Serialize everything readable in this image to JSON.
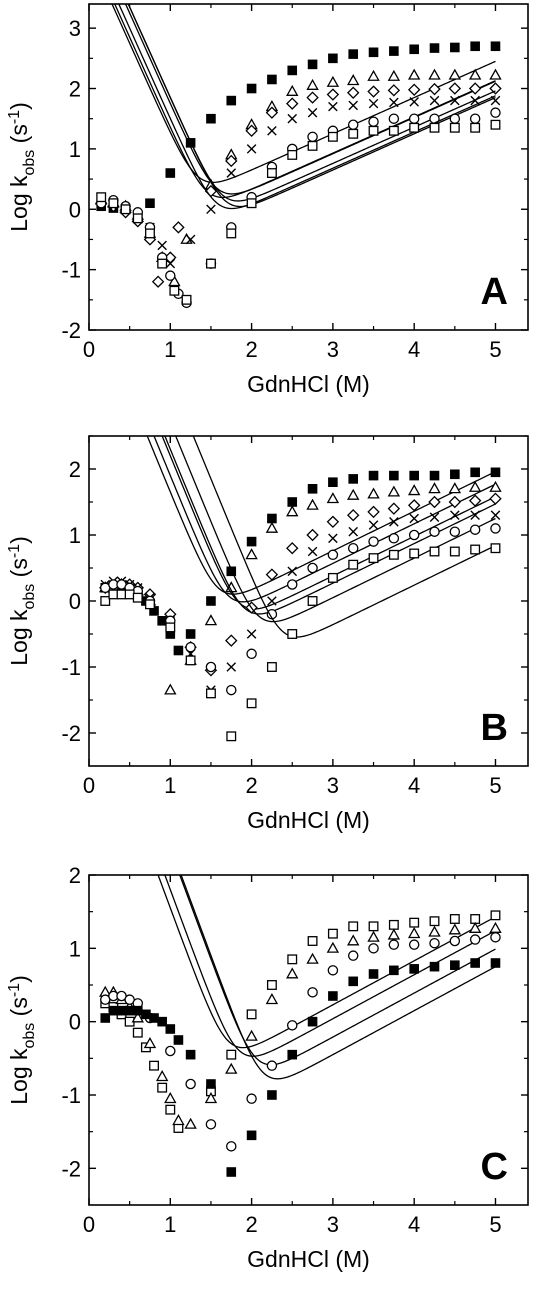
{
  "chart_data": [
    {
      "type": "scatter",
      "panel": "A",
      "xlabel": "GdnHCl (M)",
      "ylabel": "Log kobs (s-1)",
      "ylabel_parts": {
        "main": "Log k",
        "sub": "obs",
        "unit_open": " (s",
        "sup": "-1",
        "unit_close": ")"
      },
      "xlim": [
        0,
        5.4
      ],
      "ylim": [
        -2,
        3.4
      ],
      "xticks": [
        0,
        1,
        2,
        3,
        4,
        5
      ],
      "yticks": [
        -2,
        -1,
        0,
        1,
        2,
        3
      ],
      "series": [
        {
          "marker": "filled-square",
          "mu": 0.75,
          "m_f": 3.0,
          "m_u": 0.6,
          "lf": 2.0,
          "lu": -0.1,
          "span": [
            0.15,
            5.0
          ],
          "x": [
            0.15,
            0.3,
            0.45,
            0.6,
            0.75,
            1.0,
            1.25,
            1.5,
            1.75,
            2.0,
            2.25,
            2.5,
            2.75,
            3.0,
            3.25,
            3.5,
            3.75,
            4.0,
            4.25,
            4.5,
            4.75,
            5.0
          ],
          "y": [
            0.05,
            0.02,
            0.0,
            -0.1,
            0.1,
            0.6,
            1.1,
            1.5,
            1.8,
            2.0,
            2.15,
            2.3,
            2.4,
            2.5,
            2.57,
            2.6,
            2.62,
            2.65,
            2.67,
            2.68,
            2.7,
            2.7
          ]
        },
        {
          "marker": "triangle",
          "mu": 1.05,
          "m_f": 3.0,
          "m_u": 0.6,
          "lf": 1.6,
          "lu": -0.25,
          "span": [
            0.15,
            5.0
          ],
          "x": [
            0.15,
            0.3,
            0.45,
            0.6,
            0.75,
            0.9,
            1.05,
            1.2,
            1.5,
            1.75,
            2.0,
            2.25,
            2.5,
            2.75,
            3.0,
            3.25,
            3.5,
            3.75,
            4.0,
            4.25,
            4.5,
            4.75,
            5.0
          ],
          "y": [
            0.15,
            0.1,
            0.05,
            -0.1,
            -0.4,
            -0.8,
            -1.2,
            -0.5,
            0.4,
            0.9,
            1.4,
            1.7,
            1.95,
            2.05,
            2.1,
            2.13,
            2.2,
            2.2,
            2.22,
            2.22,
            2.22,
            2.22,
            2.22
          ]
        },
        {
          "marker": "diamond",
          "mu": 0.95,
          "m_f": 3.0,
          "m_u": 0.6,
          "lf": 1.5,
          "lu": -0.3,
          "span": [
            0.15,
            5.0
          ],
          "x": [
            0.15,
            0.3,
            0.45,
            0.6,
            0.75,
            0.85,
            1.0,
            1.1,
            1.5,
            1.75,
            2.0,
            2.25,
            2.5,
            2.75,
            3.0,
            3.25,
            3.5,
            3.75,
            4.0,
            4.25,
            4.5,
            4.75,
            5.0
          ],
          "y": [
            0.1,
            0.05,
            -0.05,
            -0.2,
            -0.5,
            -1.2,
            -0.8,
            -0.3,
            0.3,
            0.8,
            1.3,
            1.6,
            1.75,
            1.85,
            1.9,
            1.93,
            1.95,
            1.97,
            1.98,
            1.99,
            2.0,
            2.0,
            2.0
          ]
        },
        {
          "marker": "x",
          "mu": 1.15,
          "m_f": 3.0,
          "m_u": 0.6,
          "lf": 1.4,
          "lu": -0.35,
          "span": [
            0.15,
            5.0
          ],
          "x": [
            0.15,
            0.3,
            0.45,
            0.6,
            0.75,
            0.9,
            1.0,
            1.25,
            1.5,
            1.75,
            2.0,
            2.25,
            2.5,
            2.75,
            3.0,
            3.25,
            3.5,
            3.75,
            4.0,
            4.25,
            4.5,
            4.75,
            5.0
          ],
          "y": [
            0.1,
            0.05,
            0.0,
            -0.1,
            -0.3,
            -0.6,
            -0.9,
            -0.5,
            0.0,
            0.6,
            1.0,
            1.3,
            1.5,
            1.6,
            1.7,
            1.72,
            1.75,
            1.77,
            1.78,
            1.8,
            1.8,
            1.8,
            1.8
          ]
        },
        {
          "marker": "circle",
          "mu": 1.25,
          "m_f": 3.0,
          "m_u": 0.6,
          "lf": 1.1,
          "lu": -0.4,
          "span": [
            0.15,
            5.0
          ],
          "x": [
            0.15,
            0.3,
            0.45,
            0.6,
            0.75,
            0.9,
            1.0,
            1.1,
            1.2,
            1.5,
            1.75,
            2.0,
            2.25,
            2.5,
            2.75,
            3.0,
            3.25,
            3.5,
            3.75,
            4.0,
            4.25,
            4.5,
            4.75,
            5.0
          ],
          "y": [
            0.1,
            0.15,
            0.05,
            -0.05,
            -0.3,
            -0.8,
            -1.1,
            -1.4,
            -1.55,
            -0.9,
            -0.3,
            0.2,
            0.7,
            1.0,
            1.2,
            1.3,
            1.4,
            1.45,
            1.5,
            1.5,
            1.5,
            1.5,
            1.5,
            1.6
          ]
        },
        {
          "marker": "square",
          "mu": 1.2,
          "m_f": 3.0,
          "m_u": 0.6,
          "lf": 0.9,
          "lu": -0.4,
          "span": [
            0.15,
            5.0
          ],
          "x": [
            0.15,
            0.3,
            0.45,
            0.6,
            0.75,
            0.9,
            1.05,
            1.2,
            1.5,
            1.75,
            2.0,
            2.25,
            2.5,
            2.75,
            3.0,
            3.25,
            3.5,
            3.75,
            4.0,
            4.25,
            4.5,
            4.75,
            5.0
          ],
          "y": [
            0.2,
            0.1,
            0.0,
            -0.15,
            -0.4,
            -0.9,
            -1.35,
            -1.5,
            -0.9,
            -0.4,
            0.1,
            0.6,
            0.9,
            1.05,
            1.2,
            1.25,
            1.3,
            1.3,
            1.35,
            1.35,
            1.35,
            1.35,
            1.4
          ]
        }
      ]
    },
    {
      "type": "scatter",
      "panel": "B",
      "xlabel": "GdnHCl (M)",
      "ylabel": "Log kobs (s-1)",
      "ylabel_parts": {
        "main": "Log k",
        "sub": "obs",
        "unit_open": " (s",
        "sup": "-1",
        "unit_close": ")"
      },
      "xlim": [
        0,
        5.4
      ],
      "ylim": [
        -2.5,
        2.5
      ],
      "xticks": [
        0,
        1,
        2,
        3,
        4,
        5
      ],
      "yticks": [
        -2,
        -1,
        0,
        1,
        2
      ],
      "series": [
        {
          "marker": "filled-square",
          "mu": 1.15,
          "m_f": 3.0,
          "m_u": 0.6,
          "lf": 1.2,
          "lu": -0.35,
          "span": [
            0.2,
            5.0
          ],
          "x": [
            0.2,
            0.3,
            0.4,
            0.5,
            0.6,
            0.7,
            0.8,
            0.9,
            1.0,
            1.1,
            1.25,
            1.5,
            1.75,
            2.0,
            2.25,
            2.5,
            2.75,
            3.0,
            3.25,
            3.5,
            3.75,
            4.0,
            4.25,
            4.5,
            4.75,
            5.0
          ],
          "y": [
            0.2,
            0.2,
            0.2,
            0.15,
            0.1,
            0.0,
            -0.15,
            -0.3,
            -0.5,
            -0.75,
            -0.5,
            0.0,
            0.45,
            0.9,
            1.25,
            1.5,
            1.7,
            1.8,
            1.85,
            1.9,
            1.9,
            1.9,
            1.9,
            1.92,
            1.95,
            1.95
          ]
        },
        {
          "marker": "triangle",
          "mu": 1.3,
          "m_f": 3.0,
          "m_u": 0.6,
          "lf": 1.0,
          "lu": -0.45,
          "span": [
            0.2,
            5.0
          ],
          "x": [
            0.2,
            0.3,
            0.4,
            0.5,
            0.6,
            0.75,
            1.0,
            1.25,
            1.5,
            1.75,
            2.0,
            2.25,
            2.5,
            2.75,
            3.0,
            3.25,
            3.5,
            3.75,
            4.0,
            4.25,
            4.5,
            4.75,
            5.0
          ],
          "y": [
            0.2,
            0.2,
            0.25,
            0.2,
            0.15,
            0.0,
            -1.35,
            -0.9,
            -0.3,
            0.2,
            0.7,
            1.1,
            1.35,
            1.45,
            1.55,
            1.6,
            1.62,
            1.65,
            1.67,
            1.7,
            1.7,
            1.72,
            1.72
          ]
        },
        {
          "marker": "diamond",
          "mu": 1.45,
          "m_f": 3.0,
          "m_u": 0.6,
          "lf": 0.85,
          "lu": -0.55,
          "span": [
            0.2,
            5.0
          ],
          "x": [
            0.2,
            0.3,
            0.4,
            0.5,
            0.6,
            0.75,
            1.0,
            1.25,
            1.5,
            1.75,
            2.0,
            2.25,
            2.5,
            2.75,
            3.0,
            3.25,
            3.5,
            3.75,
            4.0,
            4.25,
            4.5,
            4.75,
            5.0
          ],
          "y": [
            0.2,
            0.2,
            0.25,
            0.25,
            0.2,
            0.1,
            -0.2,
            -0.7,
            -1.05,
            -0.6,
            -0.1,
            0.4,
            0.8,
            1.0,
            1.2,
            1.3,
            1.35,
            1.4,
            1.45,
            1.5,
            1.5,
            1.52,
            1.55
          ]
        },
        {
          "marker": "x",
          "mu": 1.55,
          "m_f": 3.0,
          "m_u": 0.6,
          "lf": 0.65,
          "lu": -0.6,
          "span": [
            0.2,
            5.0
          ],
          "x": [
            0.2,
            0.3,
            0.4,
            0.5,
            0.6,
            0.75,
            1.0,
            1.25,
            1.5,
            1.75,
            2.0,
            2.25,
            2.5,
            2.75,
            3.0,
            3.25,
            3.5,
            3.75,
            4.0,
            4.25,
            4.5,
            4.75,
            5.0
          ],
          "y": [
            0.25,
            0.3,
            0.3,
            0.25,
            0.2,
            0.05,
            -0.3,
            -0.8,
            -1.35,
            -1.0,
            -0.5,
            0.0,
            0.45,
            0.75,
            0.95,
            1.05,
            1.15,
            1.2,
            1.25,
            1.27,
            1.3,
            1.3,
            1.3
          ]
        },
        {
          "marker": "circle",
          "mu": 1.75,
          "m_f": 3.0,
          "m_u": 0.6,
          "lf": 0.45,
          "lu": -0.7,
          "span": [
            0.2,
            5.0
          ],
          "x": [
            0.2,
            0.3,
            0.4,
            0.5,
            0.6,
            0.75,
            1.0,
            1.25,
            1.5,
            1.75,
            2.0,
            2.25,
            2.5,
            2.75,
            3.0,
            3.25,
            3.5,
            3.75,
            4.0,
            4.25,
            4.5,
            4.75,
            5.0
          ],
          "y": [
            0.2,
            0.25,
            0.25,
            0.2,
            0.15,
            0.0,
            -0.3,
            -0.7,
            -1.0,
            -1.35,
            -0.8,
            -0.2,
            0.25,
            0.5,
            0.7,
            0.8,
            0.9,
            0.95,
            1.0,
            1.05,
            1.05,
            1.08,
            1.1
          ]
        },
        {
          "marker": "square",
          "mu": 2.1,
          "m_f": 3.0,
          "m_u": 0.6,
          "lf": 0.05,
          "lu": -0.9,
          "span": [
            0.2,
            5.0
          ],
          "x": [
            0.2,
            0.3,
            0.4,
            0.5,
            0.6,
            0.75,
            1.0,
            1.25,
            1.5,
            1.75,
            2.0,
            2.25,
            2.5,
            2.75,
            3.0,
            3.25,
            3.5,
            3.75,
            4.0,
            4.25,
            4.5,
            4.75,
            5.0
          ],
          "y": [
            0.0,
            0.1,
            0.1,
            0.1,
            0.05,
            -0.05,
            -0.4,
            -0.9,
            -1.4,
            -2.05,
            -1.55,
            -1.0,
            -0.5,
            0.0,
            0.35,
            0.55,
            0.65,
            0.7,
            0.72,
            0.75,
            0.75,
            0.78,
            0.8
          ]
        }
      ]
    },
    {
      "type": "scatter",
      "panel": "C",
      "xlabel": "GdnHCl (M)",
      "ylabel": "Log kobs (s-1)",
      "ylabel_parts": {
        "main": "Log k",
        "sub": "obs",
        "unit_open": " (s",
        "sup": "-1",
        "unit_close": ")"
      },
      "xlim": [
        0,
        5.4
      ],
      "ylim": [
        -2.5,
        2
      ],
      "xticks": [
        0,
        1,
        2,
        3,
        4,
        5
      ],
      "yticks": [
        -2,
        -1,
        0,
        1,
        2
      ],
      "series": [
        {
          "marker": "square",
          "mu": 1.2,
          "m_f": 3.0,
          "m_u": 0.6,
          "lf": 0.95,
          "lu": -0.85,
          "span": [
            0.2,
            5.0
          ],
          "x": [
            0.2,
            0.3,
            0.4,
            0.5,
            0.6,
            0.7,
            0.8,
            0.9,
            1.0,
            1.1,
            1.5,
            1.75,
            2.0,
            2.25,
            2.5,
            2.75,
            3.0,
            3.25,
            3.5,
            3.75,
            4.0,
            4.25,
            4.5,
            4.75,
            5.0
          ],
          "y": [
            0.25,
            0.2,
            0.1,
            0.0,
            -0.15,
            -0.35,
            -0.6,
            -0.9,
            -1.2,
            -1.45,
            -0.95,
            -0.45,
            0.1,
            0.5,
            0.85,
            1.1,
            1.2,
            1.3,
            1.3,
            1.32,
            1.35,
            1.37,
            1.4,
            1.4,
            1.45
          ]
        },
        {
          "marker": "triangle",
          "mu": 1.35,
          "m_f": 3.0,
          "m_u": 0.6,
          "lf": 0.75,
          "lu": -0.95,
          "span": [
            0.2,
            5.0
          ],
          "x": [
            0.2,
            0.3,
            0.4,
            0.5,
            0.6,
            0.75,
            0.9,
            1.0,
            1.1,
            1.25,
            1.5,
            1.75,
            2.0,
            2.25,
            2.5,
            2.75,
            3.0,
            3.25,
            3.5,
            3.75,
            4.0,
            4.25,
            4.5,
            4.75,
            5.0
          ],
          "y": [
            0.4,
            0.4,
            0.3,
            0.2,
            0.05,
            -0.3,
            -0.75,
            -1.05,
            -1.35,
            -1.4,
            -1.05,
            -0.65,
            -0.2,
            0.3,
            0.65,
            0.85,
            1.0,
            1.1,
            1.15,
            1.18,
            1.2,
            1.22,
            1.25,
            1.27,
            1.27
          ]
        },
        {
          "marker": "circle",
          "mu": 1.6,
          "m_f": 3.0,
          "m_u": 0.6,
          "lf": 0.55,
          "lu": -1.05,
          "span": [
            0.2,
            5.0
          ],
          "x": [
            0.2,
            0.3,
            0.4,
            0.5,
            0.6,
            0.75,
            1.0,
            1.25,
            1.5,
            1.75,
            2.0,
            2.25,
            2.5,
            2.75,
            3.0,
            3.25,
            3.5,
            3.75,
            4.0,
            4.25,
            4.5,
            4.75,
            5.0
          ],
          "y": [
            0.3,
            0.35,
            0.35,
            0.3,
            0.25,
            0.05,
            -0.4,
            -0.85,
            -1.4,
            -1.7,
            -1.05,
            -0.6,
            -0.05,
            0.4,
            0.7,
            0.9,
            1.0,
            1.05,
            1.05,
            1.07,
            1.1,
            1.12,
            1.15
          ]
        },
        {
          "marker": "filled-square",
          "mu": 1.75,
          "m_f": 3.0,
          "m_u": 0.6,
          "lf": 0.15,
          "lu": -1.2,
          "span": [
            0.2,
            5.0
          ],
          "x": [
            0.2,
            0.3,
            0.4,
            0.5,
            0.6,
            0.7,
            0.8,
            0.9,
            1.0,
            1.1,
            1.25,
            1.5,
            1.75,
            2.0,
            2.25,
            2.5,
            2.75,
            3.0,
            3.25,
            3.5,
            3.75,
            4.0,
            4.25,
            4.5,
            4.75,
            5.0
          ],
          "y": [
            0.05,
            0.15,
            0.15,
            0.15,
            0.15,
            0.1,
            0.05,
            0.0,
            -0.1,
            -0.25,
            -0.45,
            -0.85,
            -2.05,
            -1.55,
            -1.0,
            -0.45,
            0.0,
            0.35,
            0.55,
            0.65,
            0.7,
            0.72,
            0.75,
            0.77,
            0.8,
            0.8
          ]
        }
      ]
    }
  ]
}
